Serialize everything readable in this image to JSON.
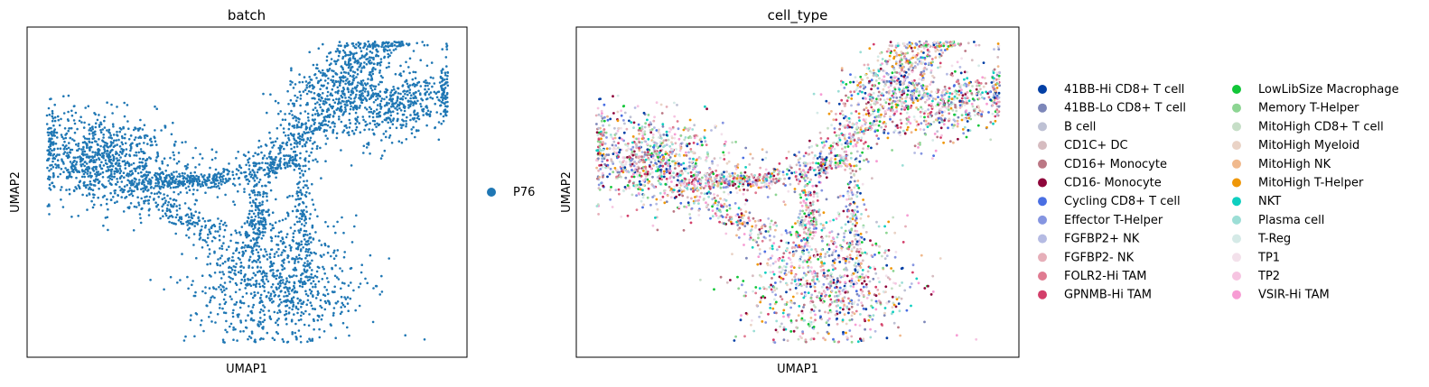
{
  "chart_data": [
    {
      "type": "scatter",
      "title": "batch",
      "xlabel": "UMAP1",
      "ylabel": "UMAP2",
      "grid": false,
      "x_ticks": false,
      "y_ticks": false,
      "legend_placement": "right",
      "color_by": "batch",
      "series": [
        {
          "name": "P76",
          "color": "#1f77b4"
        }
      ]
    },
    {
      "type": "scatter",
      "title": "cell_type",
      "xlabel": "UMAP1",
      "ylabel": "UMAP2",
      "grid": false,
      "x_ticks": false,
      "y_ticks": false,
      "legend_placement": "right",
      "legend_columns": 2,
      "color_by": "cell_type",
      "series": [
        {
          "name": "41BB-Hi CD8+ T cell",
          "color": "#023fa5"
        },
        {
          "name": "41BB-Lo CD8+ T cell",
          "color": "#7d87b9"
        },
        {
          "name": "B cell",
          "color": "#bec1d4"
        },
        {
          "name": "CD1C+ DC",
          "color": "#d6bcc0"
        },
        {
          "name": "CD16+ Monocyte",
          "color": "#bb7784"
        },
        {
          "name": "CD16- Monocyte",
          "color": "#8e063b"
        },
        {
          "name": "Cycling CD8+ T cell",
          "color": "#4a6fe3"
        },
        {
          "name": "Effector T-Helper",
          "color": "#8595e1"
        },
        {
          "name": "FGFBP2+ NK",
          "color": "#b5bbe3"
        },
        {
          "name": "FGFBP2- NK",
          "color": "#e6afb9"
        },
        {
          "name": "FOLR2-Hi TAM",
          "color": "#e07b91"
        },
        {
          "name": "GPNMB-Hi TAM",
          "color": "#d33f6a"
        },
        {
          "name": "LowLibSize Macrophage",
          "color": "#11c638"
        },
        {
          "name": "Memory T-Helper",
          "color": "#8dd593"
        },
        {
          "name": "MitoHigh CD8+ T cell",
          "color": "#c6dec7"
        },
        {
          "name": "MitoHigh Myeloid",
          "color": "#ead3c6"
        },
        {
          "name": "MitoHigh NK",
          "color": "#f0b98d"
        },
        {
          "name": "MitoHigh T-Helper",
          "color": "#ef9708"
        },
        {
          "name": "NKT",
          "color": "#0fcfc0"
        },
        {
          "name": "Plasma cell",
          "color": "#9cded6"
        },
        {
          "name": "T-Reg",
          "color": "#d5eae7"
        },
        {
          "name": "TP1",
          "color": "#f3e1eb"
        },
        {
          "name": "TP2",
          "color": "#f6c4e1"
        },
        {
          "name": "VSIR-Hi TAM",
          "color": "#f79cd4"
        }
      ]
    }
  ]
}
